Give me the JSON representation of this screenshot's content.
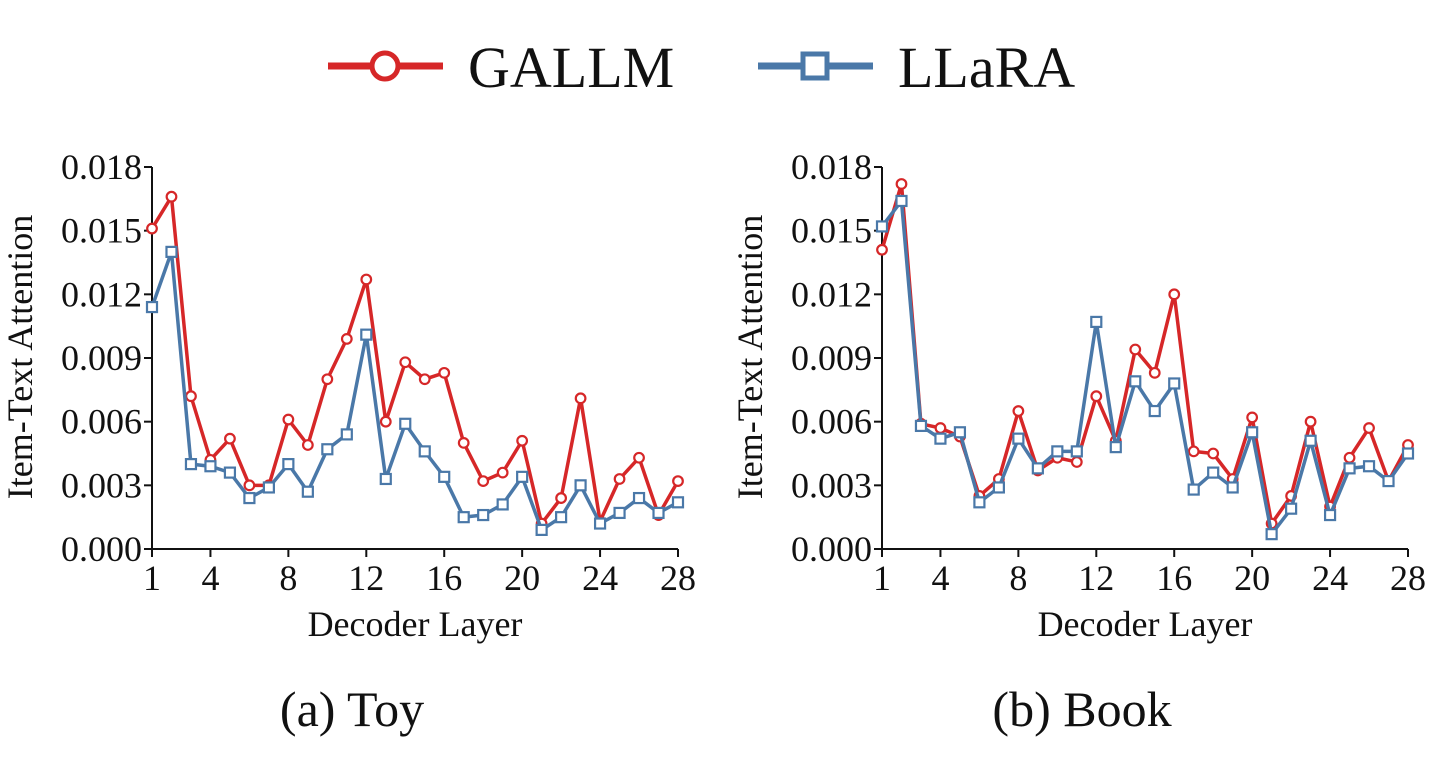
{
  "legend": {
    "items": [
      {
        "label": "GALLM",
        "color": "#d62728",
        "marker": "circle"
      },
      {
        "label": "LLaRA",
        "color": "#4a78a8",
        "marker": "square"
      }
    ]
  },
  "chart_data": [
    {
      "type": "line",
      "caption": "(a) Toy",
      "xlabel": "Decoder Layer",
      "ylabel": "Item-Text Attention",
      "xlim": [
        1,
        28
      ],
      "ylim": [
        0.0,
        0.018
      ],
      "x_ticks": [
        "1",
        "4",
        "8",
        "12",
        "16",
        "20",
        "24",
        "28"
      ],
      "y_ticks": [
        "0.000",
        "0.003",
        "0.006",
        "0.009",
        "0.012",
        "0.015",
        "0.018"
      ],
      "grid": false,
      "x": [
        1,
        2,
        3,
        4,
        5,
        6,
        7,
        8,
        9,
        10,
        11,
        12,
        13,
        14,
        15,
        16,
        17,
        18,
        19,
        20,
        21,
        22,
        23,
        24,
        25,
        26,
        27,
        28
      ],
      "series": [
        {
          "name": "GALLM",
          "color": "#d62728",
          "marker": "circle",
          "values": [
            0.0151,
            0.0166,
            0.0072,
            0.0042,
            0.0052,
            0.003,
            0.003,
            0.0061,
            0.0049,
            0.008,
            0.0099,
            0.0127,
            0.006,
            0.0088,
            0.008,
            0.0083,
            0.005,
            0.0032,
            0.0036,
            0.0051,
            0.0012,
            0.0024,
            0.0071,
            0.0013,
            0.0033,
            0.0043,
            0.0016,
            0.0032
          ]
        },
        {
          "name": "LLaRA",
          "color": "#4a78a8",
          "marker": "square",
          "values": [
            0.0114,
            0.014,
            0.004,
            0.0039,
            0.0036,
            0.0024,
            0.0029,
            0.004,
            0.0027,
            0.0047,
            0.0054,
            0.0101,
            0.0033,
            0.0059,
            0.0046,
            0.0034,
            0.0015,
            0.0016,
            0.0021,
            0.0034,
            0.0009,
            0.0015,
            0.003,
            0.0012,
            0.0017,
            0.0024,
            0.0017,
            0.0022
          ]
        }
      ]
    },
    {
      "type": "line",
      "caption": "(b) Book",
      "xlabel": "Decoder Layer",
      "ylabel": "Item-Text Attention",
      "xlim": [
        1,
        28
      ],
      "ylim": [
        0.0,
        0.018
      ],
      "x_ticks": [
        "1",
        "4",
        "8",
        "12",
        "16",
        "20",
        "24",
        "28"
      ],
      "y_ticks": [
        "0.000",
        "0.003",
        "0.006",
        "0.009",
        "0.012",
        "0.015",
        "0.018"
      ],
      "grid": false,
      "x": [
        1,
        2,
        3,
        4,
        5,
        6,
        7,
        8,
        9,
        10,
        11,
        12,
        13,
        14,
        15,
        16,
        17,
        18,
        19,
        20,
        21,
        22,
        23,
        24,
        25,
        26,
        27,
        28
      ],
      "series": [
        {
          "name": "GALLM",
          "color": "#d62728",
          "marker": "circle",
          "values": [
            0.0141,
            0.0172,
            0.0059,
            0.0057,
            0.0053,
            0.0025,
            0.0033,
            0.0065,
            0.0037,
            0.0043,
            0.0041,
            0.0072,
            0.0051,
            0.0094,
            0.0083,
            0.012,
            0.0046,
            0.0045,
            0.0033,
            0.0062,
            0.0012,
            0.0025,
            0.006,
            0.002,
            0.0043,
            0.0057,
            0.0032,
            0.0049
          ]
        },
        {
          "name": "LLaRA",
          "color": "#4a78a8",
          "marker": "square",
          "values": [
            0.0152,
            0.0164,
            0.0058,
            0.0052,
            0.0055,
            0.0022,
            0.0029,
            0.0052,
            0.0038,
            0.0046,
            0.0046,
            0.0107,
            0.0048,
            0.0079,
            0.0065,
            0.0078,
            0.0028,
            0.0036,
            0.0029,
            0.0055,
            0.0007,
            0.0019,
            0.0051,
            0.0016,
            0.0038,
            0.0039,
            0.0032,
            0.0045
          ]
        }
      ]
    }
  ]
}
